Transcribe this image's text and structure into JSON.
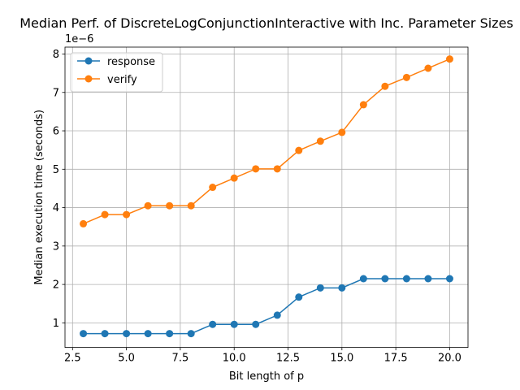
{
  "chart_data": {
    "type": "line",
    "title": "Median Perf. of DiscreteLogConjunctionInteractive with Inc. Parameter Sizes",
    "xlabel": "Bit length of p",
    "ylabel": "Median execution time (seconds)",
    "y_offset_label": "1e−6",
    "xlim": [
      2.15,
      20.85
    ],
    "ylim": [
      0.36,
      8.18
    ],
    "x_ticks": [
      2.5,
      5.0,
      7.5,
      10.0,
      12.5,
      15.0,
      17.5,
      20.0
    ],
    "x_tick_labels": [
      "2.5",
      "5.0",
      "7.5",
      "10.0",
      "12.5",
      "15.0",
      "17.5",
      "20.0"
    ],
    "y_ticks": [
      1,
      2,
      3,
      4,
      5,
      6,
      7,
      8
    ],
    "y_tick_labels": [
      "1",
      "2",
      "3",
      "4",
      "5",
      "6",
      "7",
      "8"
    ],
    "grid": true,
    "legend_position": "upper-left",
    "x": [
      3,
      4,
      5,
      6,
      7,
      8,
      9,
      10,
      11,
      12,
      13,
      14,
      15,
      16,
      17,
      18,
      19,
      20
    ],
    "series": [
      {
        "name": "response",
        "color": "#1f77b4",
        "values": [
          0.72,
          0.72,
          0.72,
          0.72,
          0.72,
          0.72,
          0.96,
          0.96,
          0.96,
          1.2,
          1.67,
          1.91,
          1.91,
          2.15,
          2.15,
          2.15,
          2.15,
          2.15
        ]
      },
      {
        "name": "verify",
        "color": "#ff7f0e",
        "values": [
          3.58,
          3.82,
          3.82,
          4.05,
          4.05,
          4.05,
          4.53,
          4.77,
          5.01,
          5.01,
          5.49,
          5.73,
          5.96,
          6.68,
          7.16,
          7.39,
          7.63,
          7.87
        ]
      }
    ]
  }
}
